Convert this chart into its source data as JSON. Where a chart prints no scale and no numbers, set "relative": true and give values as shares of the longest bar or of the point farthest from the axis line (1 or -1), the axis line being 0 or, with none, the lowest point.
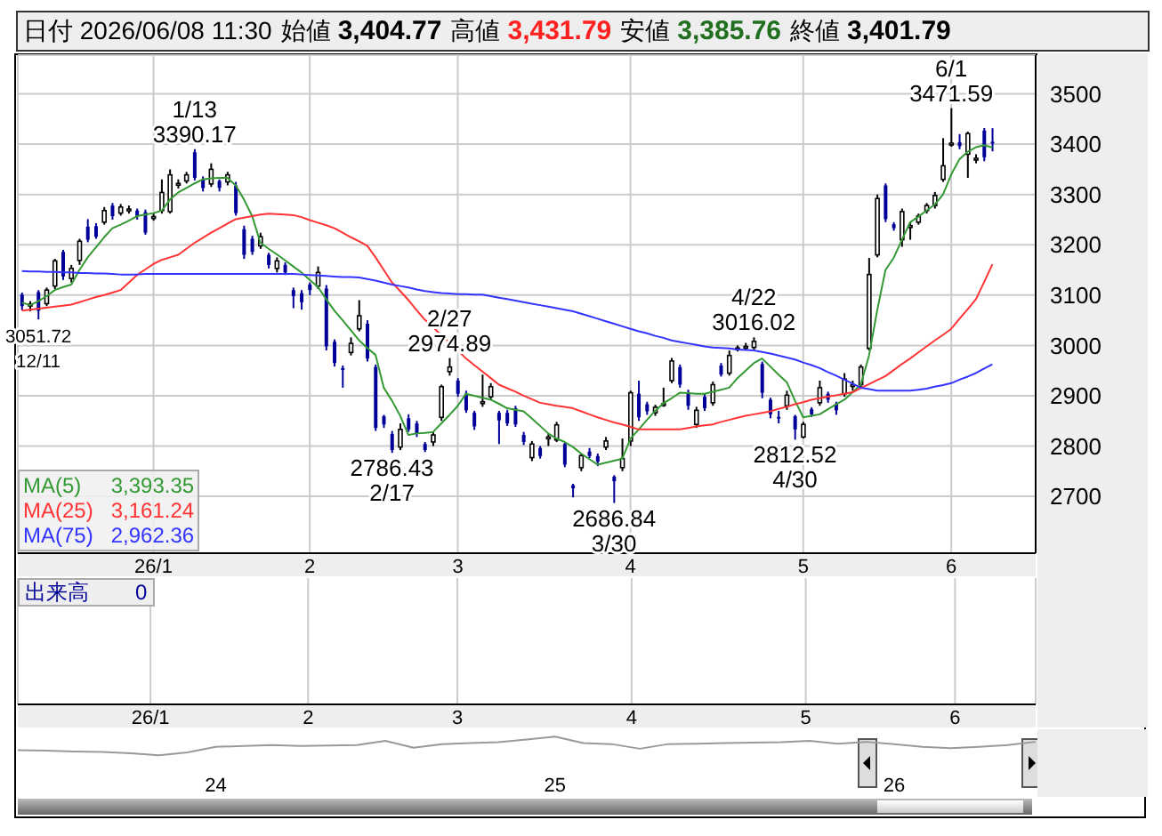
{
  "chart_data": [
    {
      "type": "candlestick",
      "title": "日付 2026/06/08 11:30",
      "subtitle": "始値 3,404.77 高値 3,431.79 安値 3,385.76 終値 3,401.79",
      "categories": [
        null,
        null,
        null,
        null,
        null,
        null,
        null,
        null,
        null,
        null,
        null,
        null,
        null,
        null,
        null,
        null,
        "26/1",
        null,
        null,
        null,
        null,
        null,
        null,
        null,
        null,
        null,
        null,
        null,
        null,
        null,
        null,
        null,
        null,
        null,
        null,
        "2",
        null,
        null,
        null,
        null,
        null,
        null,
        null,
        null,
        null,
        null,
        null,
        null,
        null,
        null,
        null,
        null,
        null,
        "3",
        null,
        null,
        null,
        null,
        null,
        null,
        null,
        null,
        null,
        null,
        null,
        null,
        null,
        null,
        null,
        null,
        null,
        null,
        null,
        null,
        "4",
        null,
        null,
        null,
        null,
        null,
        null,
        null,
        null,
        null,
        null,
        null,
        null,
        null,
        null,
        null,
        null,
        null,
        null,
        null,
        null,
        "5",
        null,
        null,
        null,
        null,
        null,
        null,
        null,
        null,
        null,
        null,
        null,
        null,
        null,
        null,
        null,
        null,
        null,
        "6",
        null,
        null,
        null,
        null,
        null
      ],
      "ohlc": [
        [
          3101,
          3105,
          3070,
          3078
        ],
        [
          3080,
          3088,
          3068,
          3082
        ],
        [
          3106,
          3110,
          3051.72,
          3069
        ],
        [
          3083,
          3115,
          3078,
          3110
        ],
        [
          3118,
          3172,
          3112,
          3168
        ],
        [
          3186,
          3190,
          3130,
          3137
        ],
        [
          3133,
          3160,
          3125,
          3153
        ],
        [
          3169,
          3212,
          3160,
          3207
        ],
        [
          3236,
          3251,
          3205,
          3210
        ],
        [
          3237,
          3243,
          3212,
          3216
        ],
        [
          3245,
          3275,
          3240,
          3268
        ],
        [
          3278,
          3283,
          3250,
          3257
        ],
        [
          3263,
          3281,
          3258,
          3275
        ],
        [
          3269,
          3278,
          3262,
          3271
        ],
        [
          3268,
          3272,
          3250,
          3257
        ],
        [
          3265,
          3270,
          3220,
          3224
        ],
        [
          3254,
          3262,
          3248,
          3256
        ],
        [
          3268,
          3330,
          3262,
          3304
        ],
        [
          3266,
          3350,
          3262,
          3339
        ],
        [
          3320,
          3330,
          3312,
          3322
        ],
        [
          3327,
          3345,
          3322,
          3339
        ],
        [
          3384,
          3390.17,
          3328,
          3333
        ],
        [
          3330,
          3336,
          3306,
          3313
        ],
        [
          3321,
          3362,
          3315,
          3350
        ],
        [
          3327,
          3330,
          3306,
          3313
        ],
        [
          3325,
          3345,
          3318,
          3339
        ],
        [
          3318,
          3325,
          3258,
          3263
        ],
        [
          3231,
          3238,
          3172,
          3180
        ],
        [
          3212,
          3218,
          3180,
          3186
        ],
        [
          3198,
          3224,
          3192,
          3216
        ],
        [
          3180,
          3184,
          3153,
          3160
        ],
        [
          3153,
          3175,
          3145,
          3168
        ],
        [
          3160,
          3165,
          3140,
          3145
        ],
        [
          3110,
          3115,
          3074,
          3098
        ],
        [
          3104,
          3110,
          3071,
          3086
        ],
        [
          3121,
          3125,
          3100,
          3110
        ],
        [
          3118,
          3157,
          3112,
          3145
        ],
        [
          3113,
          3120,
          2990,
          2998
        ],
        [
          3007,
          3012,
          2958,
          2965
        ],
        [
          2955,
          2960,
          2916,
          2953
        ],
        [
          2986,
          3016,
          2980,
          3004
        ],
        [
          3033,
          3090,
          3028,
          3059
        ],
        [
          3043,
          3050,
          2968,
          2974
        ],
        [
          2957,
          2962,
          2830,
          2836
        ],
        [
          2859,
          2862,
          2836,
          2843
        ],
        [
          2824,
          2830,
          2786.43,
          2792
        ],
        [
          2798,
          2845,
          2792,
          2833
        ],
        [
          2855,
          2863,
          2828,
          2833
        ],
        [
          2845,
          2850,
          2818,
          2824
        ],
        [
          2804,
          2808,
          2788,
          2792
        ],
        [
          2808,
          2828,
          2800,
          2822
        ],
        [
          2857,
          2922,
          2850,
          2918
        ],
        [
          2948,
          2974.89,
          2940,
          2957
        ],
        [
          2930,
          2935,
          2898,
          2904
        ],
        [
          2904,
          2910,
          2866,
          2871
        ],
        [
          2866,
          2870,
          2832,
          2839
        ],
        [
          2886,
          2942,
          2878,
          2888
        ],
        [
          2898,
          2925,
          2892,
          2918
        ],
        [
          2866,
          2870,
          2804,
          2851
        ],
        [
          2866,
          2872,
          2840,
          2845
        ],
        [
          2875,
          2880,
          2838,
          2843
        ],
        [
          2822,
          2828,
          2802,
          2808
        ],
        [
          2777,
          2810,
          2770,
          2804
        ],
        [
          2796,
          2800,
          2775,
          2780
        ],
        [
          2816,
          2824,
          2800,
          2818
        ],
        [
          2812,
          2848,
          2808,
          2842
        ],
        [
          2804,
          2808,
          2758,
          2763
        ],
        [
          2722,
          2725,
          2698,
          2716
        ],
        [
          2757,
          2785,
          2750,
          2781
        ],
        [
          2789,
          2796,
          2776,
          2780
        ],
        [
          2780,
          2785,
          2760,
          2769
        ],
        [
          2798,
          2818,
          2792,
          2810
        ],
        [
          2739,
          2742,
          2686.84,
          2730
        ],
        [
          2757,
          2815,
          2750,
          2775
        ],
        [
          2810,
          2910,
          2800,
          2906
        ],
        [
          2904,
          2930,
          2850,
          2857
        ],
        [
          2883,
          2888,
          2862,
          2869
        ],
        [
          2866,
          2882,
          2860,
          2877
        ],
        [
          2882,
          2916,
          2878,
          2884
        ],
        [
          2930,
          2975,
          2925,
          2969
        ],
        [
          2957,
          2962,
          2916,
          2922
        ],
        [
          2906,
          2912,
          2872,
          2880
        ],
        [
          2843,
          2878,
          2836,
          2871
        ],
        [
          2898,
          2904,
          2870,
          2875
        ],
        [
          2886,
          2928,
          2880,
          2922
        ],
        [
          2960,
          2965,
          2938,
          2942
        ],
        [
          2945,
          2990,
          2940,
          2980
        ],
        [
          2993,
          3000,
          2988,
          2995
        ],
        [
          2995,
          3005,
          2990,
          2998
        ],
        [
          2996,
          3016.02,
          2992,
          3008
        ],
        [
          2963,
          2968,
          2895,
          2906
        ],
        [
          2892,
          2896,
          2855,
          2863
        ],
        [
          2858,
          2870,
          2845,
          2855
        ],
        [
          2880,
          2910,
          2872,
          2901
        ],
        [
          2859,
          2862,
          2812.52,
          2833
        ],
        [
          2818,
          2848,
          2815,
          2843
        ],
        [
          2873,
          2877,
          2858,
          2863
        ],
        [
          2886,
          2930,
          2880,
          2916
        ],
        [
          2904,
          2908,
          2886,
          2892
        ],
        [
          2884,
          2888,
          2862,
          2871
        ],
        [
          2904,
          2945,
          2898,
          2933
        ],
        [
          2920,
          2930,
          2910,
          2922
        ],
        [
          2922,
          2962,
          2916,
          2957
        ],
        [
          2994,
          3174,
          2990,
          3141
        ],
        [
          3180,
          3300,
          3175,
          3292
        ],
        [
          3318,
          3322,
          3245,
          3251
        ],
        [
          3241,
          3245,
          3228,
          3233
        ],
        [
          3210,
          3272,
          3196,
          3266
        ],
        [
          3236,
          3245,
          3210,
          3238
        ],
        [
          3245,
          3262,
          3240,
          3257
        ],
        [
          3268,
          3283,
          3262,
          3278
        ],
        [
          3278,
          3305,
          3272,
          3298
        ],
        [
          3330,
          3412,
          3325,
          3357
        ],
        [
          3400,
          3471.59,
          3395,
          3402
        ],
        [
          3404,
          3420,
          3390,
          3396
        ],
        [
          3380,
          3425,
          3333,
          3421
        ],
        [
          3370,
          3380,
          3362,
          3372
        ],
        [
          3427,
          3432,
          3366,
          3374
        ],
        [
          3404.77,
          3431.79,
          3385.76,
          3401.79
        ]
      ],
      "series": [
        {
          "name": "MA(5)",
          "type": "line",
          "color": "#339933",
          "values": [
            3085,
            3080,
            3088,
            3098,
            3110,
            3116,
            3121,
            3150,
            3175,
            3195,
            3215,
            3233,
            3240,
            3248,
            3257,
            3260,
            3263,
            3268,
            3290,
            3304,
            3313,
            3322,
            3330,
            3332,
            3333,
            3333,
            3318,
            3290,
            3257,
            3204,
            3192,
            3181,
            3169,
            3157,
            3145,
            3130,
            3116,
            3092,
            3069,
            3050,
            3030,
            3010,
            2995,
            2981,
            2916,
            2890,
            2860,
            2822,
            2825,
            2826,
            2828,
            2845,
            2862,
            2880,
            2904,
            2900,
            2896,
            2892,
            2884,
            2875,
            2872,
            2869,
            2855,
            2840,
            2825,
            2815,
            2808,
            2798,
            2785,
            2774,
            2763,
            2767,
            2771,
            2775,
            2815,
            2833,
            2852,
            2870,
            2885,
            2895,
            2906,
            2905,
            2904,
            2904,
            2908,
            2912,
            2916,
            2935,
            2950,
            2965,
            2974,
            2958,
            2942,
            2927,
            2890,
            2857,
            2860,
            2863,
            2873,
            2883,
            2892,
            2907,
            2922,
            2980,
            3070,
            3150,
            3174,
            3210,
            3245,
            3256,
            3268,
            3280,
            3300,
            3340,
            3370,
            3385,
            3394,
            3398,
            3393.35
          ]
        },
        {
          "name": "MA(25)",
          "type": "line",
          "color": "#ff3333",
          "values": [
            3069,
            3071,
            3073,
            3075,
            3077,
            3079,
            3081,
            3086,
            3091,
            3096,
            3100,
            3105,
            3110,
            3125,
            3140,
            3151,
            3162,
            3170,
            3175,
            3180,
            3192,
            3204,
            3214,
            3224,
            3233,
            3242,
            3251,
            3254,
            3257,
            3260,
            3262,
            3261,
            3260,
            3259,
            3255,
            3249,
            3244,
            3239,
            3233,
            3224,
            3215,
            3207,
            3198,
            3175,
            3150,
            3125,
            3108,
            3090,
            3070,
            3051,
            3036,
            3020,
            3005,
            2990,
            2974,
            2961,
            2948,
            2935,
            2922,
            2915,
            2908,
            2900,
            2893,
            2886,
            2883,
            2880,
            2878,
            2875,
            2869,
            2863,
            2857,
            2852,
            2847,
            2843,
            2838,
            2833,
            2833,
            2833,
            2833,
            2833,
            2833,
            2836,
            2839,
            2841,
            2843,
            2848,
            2852,
            2856,
            2860,
            2863,
            2866,
            2869,
            2874,
            2878,
            2883,
            2887,
            2892,
            2895,
            2898,
            2901,
            2904,
            2907,
            2915,
            2923,
            2931,
            2939,
            2951,
            2963,
            2974,
            2986,
            2998,
            3010,
            3021,
            3033,
            3053,
            3072,
            3092,
            3126,
            3161.24
          ]
        },
        {
          "name": "MA(75)",
          "type": "line",
          "color": "#3333ff",
          "values": [
            3148,
            3147,
            3147,
            3146,
            3146,
            3145,
            3145,
            3144,
            3144,
            3143,
            3143,
            3142,
            3141,
            3141,
            3141,
            3142,
            3142,
            3142,
            3142,
            3142,
            3142,
            3142,
            3142,
            3142,
            3142,
            3142,
            3142,
            3142,
            3142,
            3142,
            3142,
            3142,
            3142,
            3142,
            3141,
            3140,
            3139,
            3138,
            3137,
            3136,
            3136,
            3135,
            3132,
            3129,
            3125,
            3121,
            3118,
            3115,
            3111,
            3108,
            3106,
            3104,
            3103,
            3102,
            3102,
            3101,
            3101,
            3098,
            3095,
            3092,
            3089,
            3086,
            3083,
            3080,
            3077,
            3074,
            3071,
            3068,
            3063,
            3058,
            3053,
            3048,
            3043,
            3038,
            3033,
            3028,
            3024,
            3019,
            3015,
            3010,
            3007,
            3004,
            3001,
            2998,
            2996,
            2995,
            2994,
            2992,
            2991,
            2990,
            2987,
            2984,
            2980,
            2976,
            2972,
            2966,
            2961,
            2955,
            2947,
            2940,
            2932,
            2924,
            2916,
            2913,
            2910,
            2910,
            2910,
            2910,
            2910,
            2912,
            2914,
            2918,
            2921,
            2925,
            2932,
            2938,
            2945,
            2954,
            2962.36
          ]
        }
      ],
      "ylim": [
        2587,
        3577
      ],
      "yticks": [
        2700,
        2800,
        2900,
        3000,
        3100,
        3200,
        3300,
        3400,
        3500
      ],
      "grid": true,
      "legend": "bottom left",
      "annotations": [
        "3,393.35",
        "3,161.24",
        "2,962.36",
        {
          "text": "3051.72\n12/11",
          "y": 3051.72
        },
        {
          "text": "1/13\n3390.17",
          "y": 3390.17
        },
        {
          "text": "2786.43\n2/17",
          "y": 2786.43
        },
        {
          "text": "2/27\n2974.89",
          "y": 2974.89
        },
        {
          "text": "2686.84\n3/30",
          "y": 2686.84
        },
        {
          "text": "4/22\n3016.02",
          "y": 3016.02
        },
        {
          "text": "2812.52\n4/30",
          "y": 2812.52
        },
        {
          "text": "6/1\n3471.59",
          "y": 3471.59
        }
      ]
    },
    {
      "type": "other",
      "annotations": [
        "出来高 0"
      ],
      "categories": [
        null,
        null,
        null,
        null,
        null,
        null,
        null,
        null,
        null,
        null,
        null,
        null,
        null,
        null,
        null,
        null,
        "26/1",
        null,
        null,
        null,
        null,
        null,
        null,
        null,
        null,
        null,
        null,
        null,
        null,
        null,
        null,
        null,
        null,
        null,
        null,
        "2",
        null,
        null,
        null,
        null,
        null,
        null,
        null,
        null,
        null,
        null,
        null,
        null,
        null,
        null,
        null,
        null,
        null,
        "3",
        null,
        null,
        null,
        null,
        null,
        null,
        null,
        null,
        null,
        null,
        null,
        null,
        null,
        null,
        null,
        null,
        null,
        null,
        null,
        null,
        "4",
        null,
        null,
        null,
        null,
        null,
        null,
        null,
        null,
        null,
        null,
        null,
        null,
        null,
        null,
        null,
        null,
        null,
        null,
        null,
        null,
        "5",
        null,
        null,
        null,
        null,
        null,
        null,
        null,
        null,
        null,
        null,
        null,
        null,
        null,
        null,
        null,
        null,
        null,
        "6",
        null,
        null,
        null,
        null,
        null
      ]
    },
    {
      "type": "line",
      "relative": true,
      "categories": [
        null,
        null,
        null,
        null,
        null,
        null,
        null,
        "24",
        null,
        null,
        null,
        null,
        null,
        null,
        null,
        null,
        null,
        null,
        null,
        "25",
        null,
        null,
        null,
        null,
        null,
        null,
        null,
        null,
        null,
        null,
        null,
        "26",
        null,
        null,
        null,
        null,
        null
      ],
      "series": [
        {
          "color": "#999999",
          "values": [
            0.27,
            0.25,
            0.2,
            0.18,
            0.1,
            0,
            0.15,
            0.45,
            0.5,
            0.55,
            0.5,
            0.52,
            0.55,
            0.77,
            0.4,
            0.6,
            0.65,
            0.7,
            0.85,
            1,
            0.65,
            0.6,
            0.35,
            0.6,
            0.62,
            0.65,
            0.68,
            0.7,
            0.77,
            0.62,
            0.72,
            0.6,
            0.45,
            0.38,
            0.45,
            0.55,
            0.72
          ]
        }
      ]
    }
  ]
}
